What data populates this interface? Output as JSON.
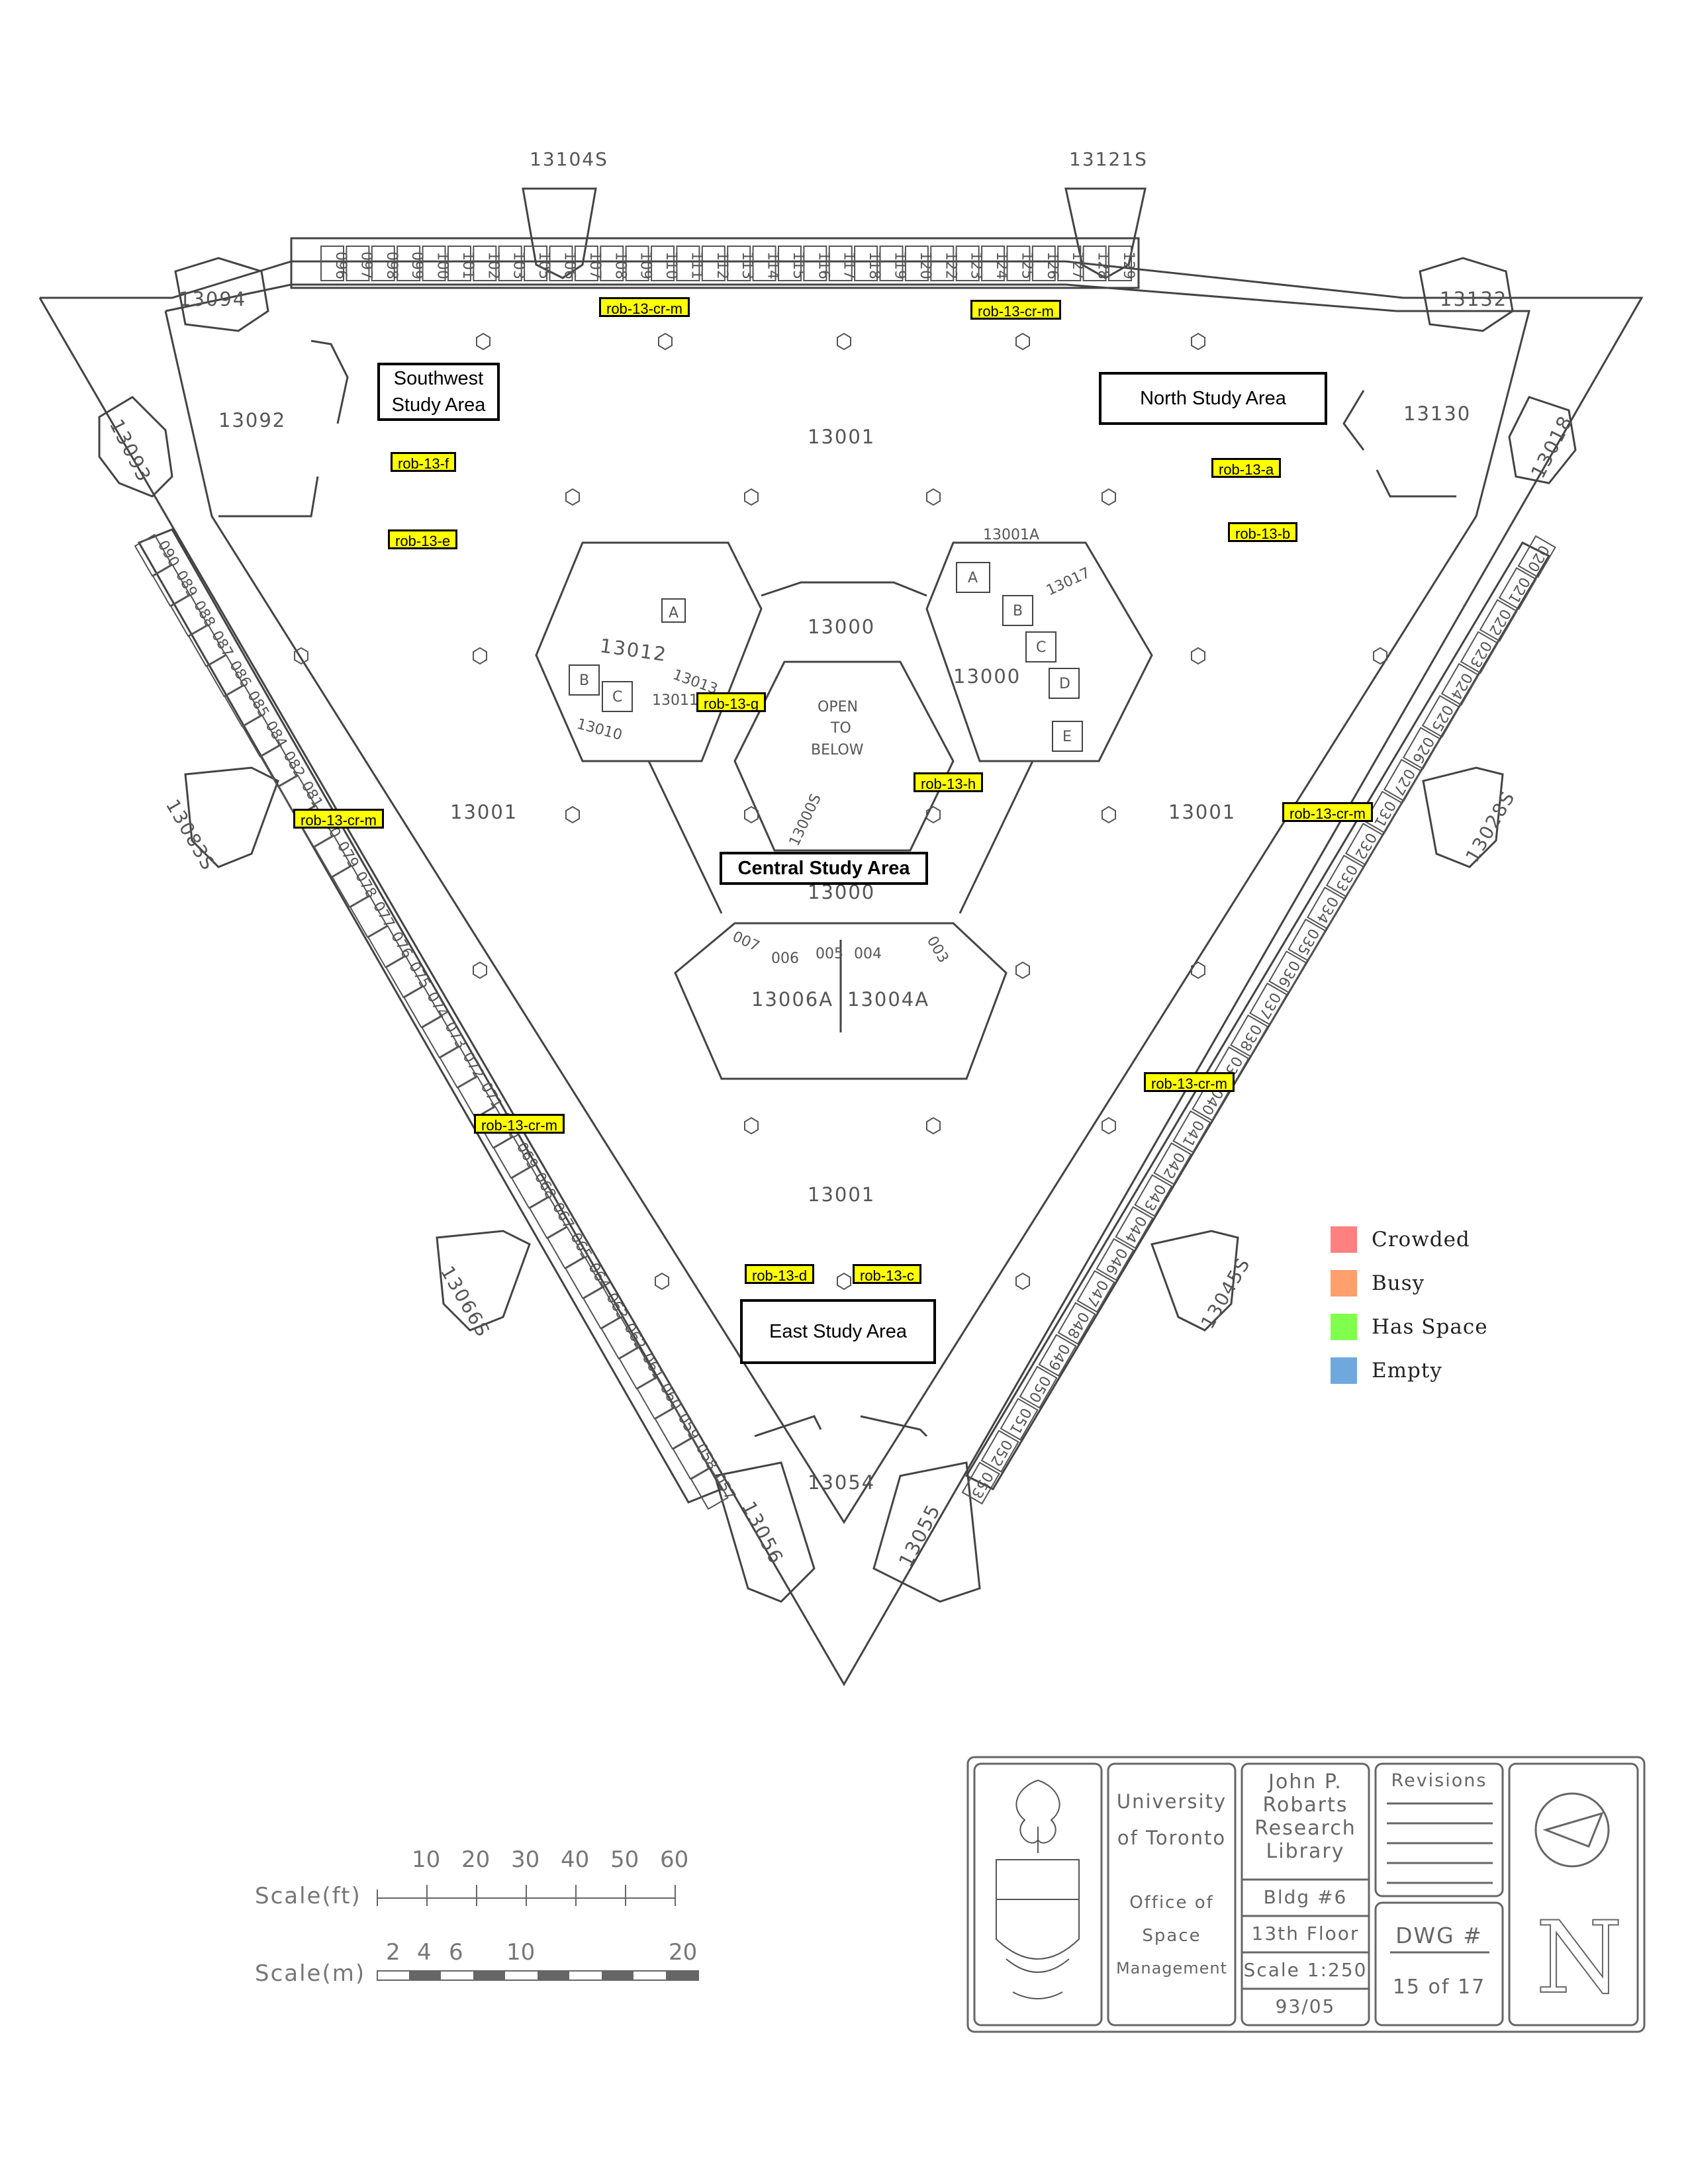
{
  "room_labels": {
    "stair_nw": "13104S",
    "stair_ne": "13121S",
    "r13094": "13094",
    "r13132": "13132",
    "r13092": "13092",
    "r13130": "13130",
    "r13093": "13093",
    "r13018": "13018",
    "r13001_top": "13001",
    "r13001_left": "13001",
    "r13001_right": "13001",
    "r13001_bottom": "13001",
    "r13000_top": "13000",
    "r13000_right": "13000",
    "r13000_mid": "13000",
    "r13001A": "13001A",
    "r13017": "13017",
    "r13012": "13012",
    "r13013": "13013",
    "r13011": "13011",
    "r13010": "13010",
    "open_to_below_1": "OPEN",
    "open_to_below_2": "TO",
    "open_to_below_3": "BELOW",
    "stair_center": "13000S",
    "stair_west": "13083S",
    "stair_east": "13028S",
    "stair_sw": "13066S",
    "stair_se": "13045S",
    "r13006A": "13006A",
    "r13004A": "13004A",
    "r006": "006",
    "r005": "005",
    "r004": "004",
    "r007": "007",
    "r003": "003",
    "r13054": "13054",
    "r13056": "13056",
    "r13055": "13055",
    "closet_A1": "A",
    "closet_B1": "B",
    "closet_C1": "C",
    "closet_D1": "D",
    "closet_E1": "E",
    "closet_A2": "A",
    "closet_B2": "B",
    "closet_C2": "C",
    "carrels_top": [
      "096",
      "097",
      "098",
      "099",
      "100",
      "101",
      "102",
      "103",
      "105",
      "106",
      "107",
      "108",
      "109",
      "110",
      "111",
      "112",
      "113",
      "114",
      "115",
      "116",
      "117",
      "118",
      "119",
      "120",
      "122",
      "123",
      "124",
      "125",
      "126",
      "127",
      "128",
      "129"
    ],
    "carrels_left": [
      "090",
      "089",
      "088",
      "087",
      "086",
      "085",
      "084",
      "082",
      "081",
      "080",
      "079",
      "078",
      "077",
      "076",
      "075",
      "074",
      "073",
      "072",
      "071",
      "070",
      "069",
      "068",
      "067",
      "065",
      "064",
      "063",
      "062",
      "061",
      "060",
      "059",
      "058",
      "057"
    ],
    "carrels_right": [
      "020",
      "021",
      "022",
      "023",
      "024",
      "025",
      "026",
      "027",
      "031",
      "032",
      "033",
      "034",
      "035",
      "036",
      "037",
      "038",
      "039",
      "040",
      "041",
      "042",
      "043",
      "044",
      "046",
      "047",
      "048",
      "049",
      "050",
      "051",
      "052",
      "053"
    ]
  },
  "sensors": {
    "top_left_cr": "rob-13-cr-m",
    "top_right_cr": "rob-13-cr-m",
    "f": "rob-13-f",
    "e": "rob-13-e",
    "a": "rob-13-a",
    "b": "rob-13-b",
    "g": "rob-13-g",
    "h": "rob-13-h",
    "west_cr": "rob-13-cr-m",
    "east_cr": "rob-13-cr-m",
    "se_cr": "rob-13-cr-m",
    "sw_cr": "rob-13-cr-m",
    "d": "rob-13-d",
    "c": "rob-13-c"
  },
  "areas": {
    "southwest": "Southwest Study Area",
    "north": "North Study Area",
    "central": "Central Study Area",
    "east": "East Study Area"
  },
  "legend": [
    {
      "label": "Crowded",
      "color": "#ff8080"
    },
    {
      "label": "Busy",
      "color": "#ff9f6b"
    },
    {
      "label": "Has Space",
      "color": "#80ff4d"
    },
    {
      "label": "Empty",
      "color": "#6fa8dc"
    }
  ],
  "scale": {
    "ft_label": "Scale(ft)",
    "m_label": "Scale(m)",
    "ft_ticks": [
      "10",
      "20",
      "30",
      "40",
      "50",
      "60"
    ],
    "m_ticks": [
      "2",
      "4",
      "6",
      "10",
      "20"
    ]
  },
  "title_block": {
    "univ_1": "University",
    "univ_2": "of Toronto",
    "office_1": "Office  of",
    "office_2": "Space",
    "office_3": "Management",
    "building_1": "John  P.",
    "building_2": "Robarts",
    "building_3": "Research",
    "building_4": "Library",
    "bldg": "Bldg  #6",
    "floor": "13th  Floor",
    "scale": "Scale  1:250",
    "date": "93/05",
    "revisions": "Revisions",
    "dwg": "DWG  #",
    "sheet": "15  of  17",
    "north": "N"
  }
}
